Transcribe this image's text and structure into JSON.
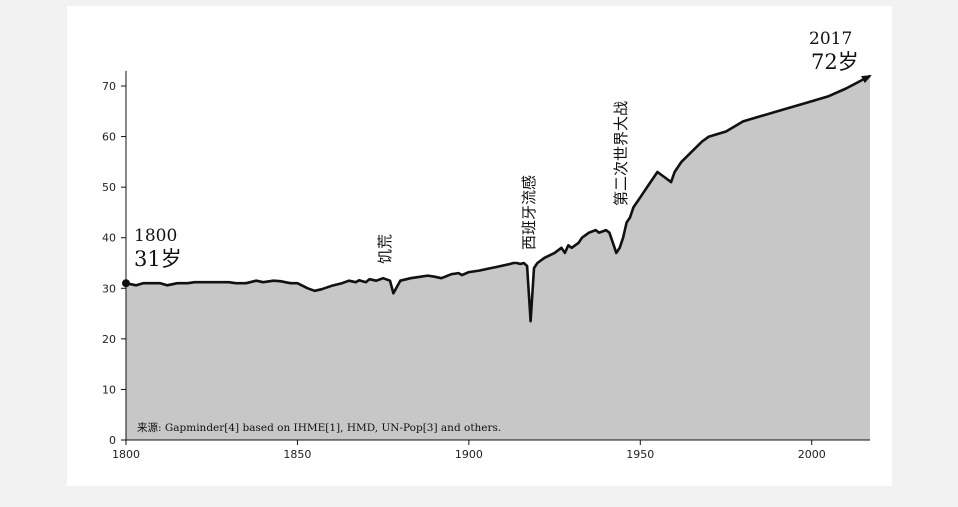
{
  "chart_data": {
    "type": "area",
    "title": "",
    "xlabel": "",
    "ylabel": "",
    "xlim": [
      1800,
      2017
    ],
    "ylim": [
      0,
      73
    ],
    "x_ticks": [
      "1800",
      "1850",
      "1900",
      "1950",
      "2000"
    ],
    "y_ticks": [
      "0",
      "10",
      "20",
      "30",
      "40",
      "50",
      "60",
      "70"
    ],
    "grid": false,
    "fill_color": "#c7c7c7",
    "line_color": "#111111",
    "start_label": {
      "year": "1800",
      "value": "31岁"
    },
    "end_label": {
      "year": "2017",
      "value": "72岁"
    },
    "annotations": [
      {
        "text": "饥荒",
        "x": 1878,
        "y": 29
      },
      {
        "text": "西班牙流感",
        "x": 1918,
        "y": 23.5
      },
      {
        "text": "第二次世界大战",
        "x": 1944,
        "y": 36.5
      }
    ],
    "source_note": "来源: Gapminder[4] based on IHME[1], HMD, UN-Pop[3] and others.",
    "series": [
      {
        "x": [
          1800,
          1803,
          1805,
          1808,
          1810,
          1812,
          1815,
          1818,
          1820,
          1825,
          1830,
          1832,
          1835,
          1838,
          1840,
          1843,
          1845,
          1848,
          1850,
          1853,
          1855,
          1857,
          1860,
          1863,
          1865,
          1867,
          1868,
          1870,
          1871,
          1873,
          1875,
          1877,
          1878,
          1880,
          1883,
          1885,
          1888,
          1890,
          1892,
          1895,
          1897,
          1898,
          1900,
          1903,
          1905,
          1908,
          1910,
          1912,
          1913,
          1914,
          1915,
          1916,
          1917,
          1918,
          1919,
          1920,
          1922,
          1925,
          1927,
          1928,
          1929,
          1930,
          1932,
          1933,
          1935,
          1937,
          1938,
          1940,
          1941,
          1942,
          1943,
          1944,
          1945,
          1946,
          1947,
          1948,
          1950,
          1952,
          1955,
          1957,
          1959,
          1960,
          1962,
          1965,
          1968,
          1970,
          1975,
          1980,
          1985,
          1990,
          1995,
          2000,
          2005,
          2010,
          2017
        ],
        "y": [
          31,
          30.6,
          31,
          31,
          31,
          30.6,
          31,
          31,
          31.2,
          31.2,
          31.2,
          31,
          31,
          31.5,
          31.2,
          31.5,
          31.4,
          31,
          31,
          30,
          29.5,
          29.8,
          30.5,
          31,
          31.5,
          31.2,
          31.6,
          31.2,
          31.8,
          31.5,
          32,
          31.5,
          29,
          31.5,
          32,
          32.2,
          32.5,
          32.3,
          32,
          32.8,
          33,
          32.6,
          33.2,
          33.5,
          33.8,
          34.2,
          34.5,
          34.8,
          35,
          35,
          34.8,
          35,
          34.4,
          23.5,
          34,
          35,
          36,
          37,
          38,
          37,
          38.5,
          38,
          39,
          40,
          41,
          41.5,
          41,
          41.5,
          41,
          39,
          37,
          38,
          40,
          43,
          44,
          46,
          48,
          50,
          53,
          52,
          51,
          53,
          55,
          57,
          59,
          60,
          61,
          63,
          64,
          65,
          66,
          67,
          68,
          69.5,
          72
        ]
      }
    ]
  }
}
